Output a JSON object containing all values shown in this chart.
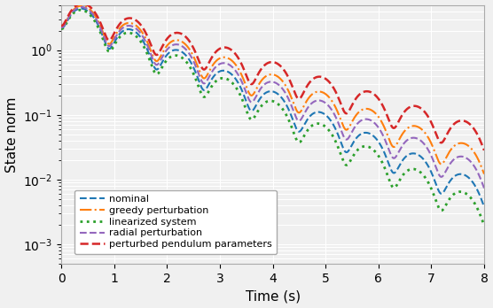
{
  "title": "",
  "xlabel": "Time (s)",
  "ylabel": "State norm",
  "xlim": [
    0,
    8
  ],
  "ylim": [
    0.0005,
    5.0
  ],
  "series": [
    {
      "label": "nominal",
      "color": "#1f77b4",
      "linestyle": "--",
      "linewidth": 1.5,
      "zorder": 3
    },
    {
      "label": "greedy perturbation",
      "color": "#ff7f0e",
      "linestyle": "-.",
      "linewidth": 1.5,
      "zorder": 3
    },
    {
      "label": "linearized system",
      "color": "#2ca02c",
      "linestyle": ":",
      "linewidth": 2.0,
      "zorder": 3
    },
    {
      "label": "radial perturbation",
      "color": "#9467bd",
      "linestyle": "--",
      "linewidth": 1.5,
      "zorder": 3
    },
    {
      "label": "perturbed pendulum parameters",
      "color": "#d62728",
      "linestyle": "--",
      "linewidth": 1.8,
      "zorder": 3
    }
  ],
  "legend_loc": "lower left",
  "background_color": "#f0f0f0",
  "grid_color": "white",
  "grid_linewidth": 0.8
}
